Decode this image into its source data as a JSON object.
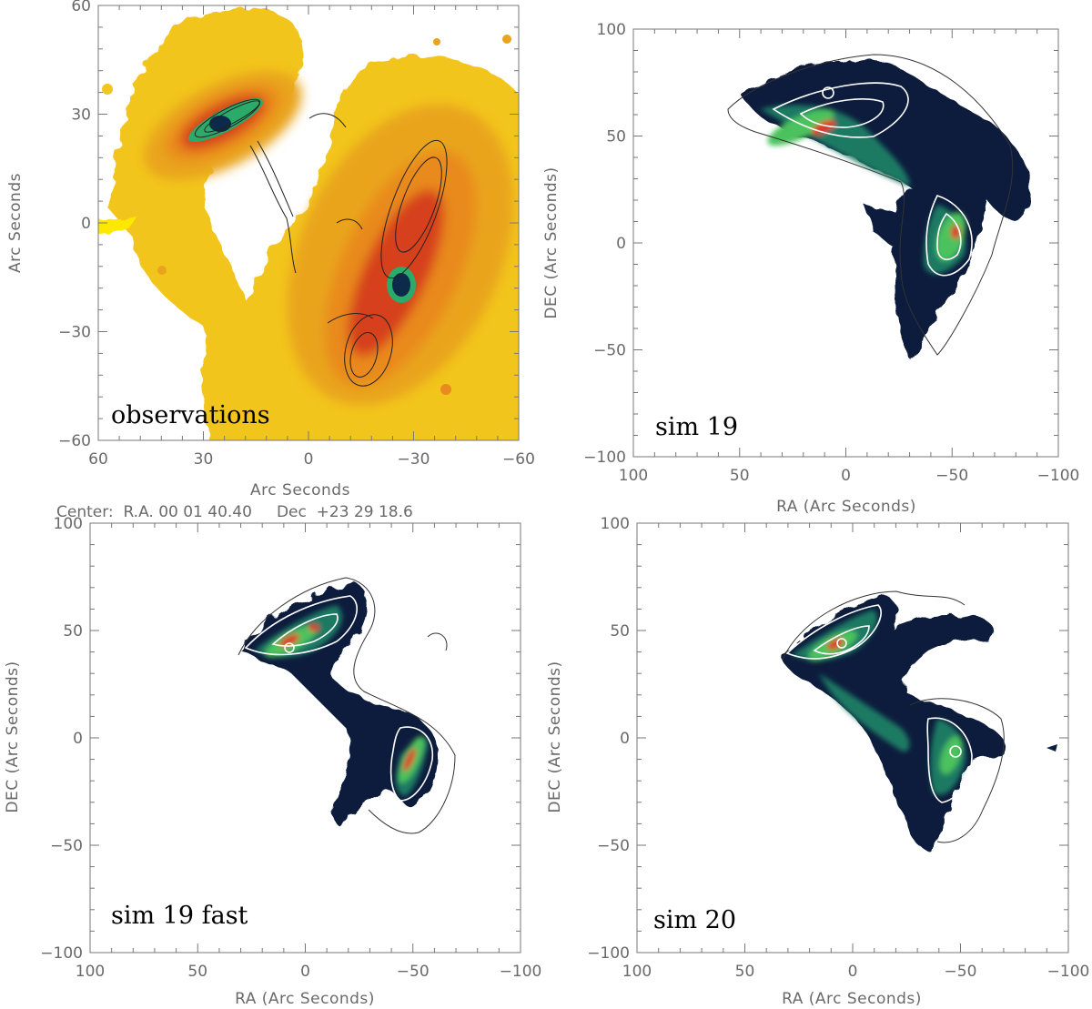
{
  "figure": {
    "panels": [
      {
        "id": "observations",
        "label": "observations",
        "xlabel": "Arc Seconds",
        "ylabel": "Arc Seconds",
        "center_caption": "Center:  R.A. 00 01 40.40     Dec  +23 29 18.6",
        "xlim": [
          60,
          -60
        ],
        "ylim": [
          -60,
          60
        ],
        "xticks": [
          60,
          30,
          0,
          -30,
          -60
        ],
        "yticks": [
          -60,
          -30,
          0,
          30,
          60
        ],
        "xtick_labels": [
          "60",
          "30",
          "0",
          "−30",
          "−60"
        ],
        "ytick_labels": [
          "−60",
          "−30",
          "0",
          "30",
          "60"
        ]
      },
      {
        "id": "sim19",
        "label": "sim 19",
        "xlabel": "RA (Arc Seconds)",
        "ylabel": "DEC (Arc Seconds)",
        "xlim": [
          100,
          -100
        ],
        "ylim": [
          -100,
          100
        ],
        "xticks": [
          100,
          50,
          0,
          -50,
          -100
        ],
        "yticks": [
          -100,
          -50,
          0,
          50,
          100
        ],
        "xtick_labels": [
          "100",
          "50",
          "0",
          "−50",
          "−100"
        ],
        "ytick_labels": [
          "−100",
          "−50",
          "0",
          "50",
          "100"
        ]
      },
      {
        "id": "sim19fast",
        "label": "sim 19 fast",
        "xlabel": "RA (Arc Seconds)",
        "ylabel": "DEC (Arc Seconds)",
        "xlim": [
          100,
          -100
        ],
        "ylim": [
          -100,
          100
        ],
        "xticks": [
          100,
          50,
          0,
          -50,
          -100
        ],
        "yticks": [
          -100,
          -50,
          0,
          50,
          100
        ],
        "xtick_labels": [
          "100",
          "50",
          "0",
          "−50",
          "−100"
        ],
        "ytick_labels": [
          "−100",
          "−50",
          "0",
          "50",
          "100"
        ]
      },
      {
        "id": "sim20",
        "label": "sim 20",
        "xlabel": "RA (Arc Seconds)",
        "ylabel": "DEC (Arc Seconds)",
        "xlim": [
          100,
          -100
        ],
        "ylim": [
          -100,
          100
        ],
        "xticks": [
          100,
          50,
          0,
          -50,
          -100
        ],
        "yticks": [
          -100,
          -50,
          0,
          50,
          100
        ],
        "xtick_labels": [
          "100",
          "50",
          "0",
          "−50",
          "−100"
        ],
        "ytick_labels": [
          "−100",
          "−50",
          "0",
          "50",
          "100"
        ]
      }
    ],
    "colors": {
      "obs_background": "#f2c51f",
      "obs_bright": "#ffe800",
      "obs_orange": "#e98a1e",
      "obs_red": "#d6401c",
      "obs_core_green": "#2bab6a",
      "obs_core_dark": "#0d2a4a",
      "sim_dark": "#0a1f3d",
      "sim_mid": "#1e7a63",
      "sim_bright": "#4cc25d",
      "sim_hot": "#e0352a",
      "contour_light": "#ffffff",
      "contour_dark": "#222222"
    }
  }
}
